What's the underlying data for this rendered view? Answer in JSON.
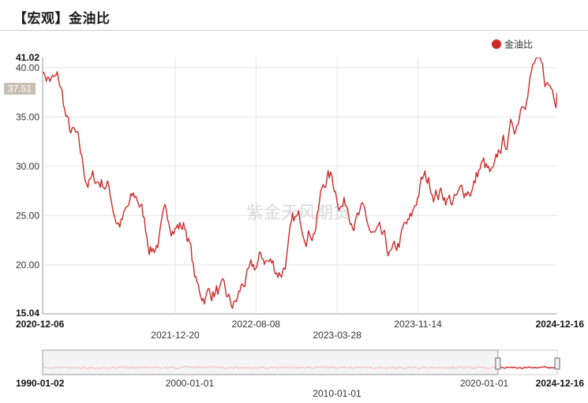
{
  "title": "【宏观】金油比",
  "watermark": "紫金天风期货",
  "colors": {
    "series": "#cc2a2a",
    "navigator_line": "#f3b6b6",
    "grid": "#e6e6e6",
    "current_bg": "#c8bfb4"
  },
  "chart_data": {
    "type": "line",
    "title": "",
    "xlabel": "",
    "ylabel": "",
    "ylim": [
      15.04,
      41.02
    ],
    "xlim": [
      "2020-12-06",
      "2024-12-16"
    ],
    "grid": true,
    "legend_position": "top-right",
    "y_ticks": [
      "15.04",
      "20.00",
      "25.00",
      "30.00",
      "35.00",
      "40.00",
      "41.02"
    ],
    "x_ticks_top_row": [
      "2020-12-06",
      "2022-08-08",
      "2023-11-14",
      "2024-12-16"
    ],
    "x_ticks_bottom_row": [
      "2021-12-20",
      "2023-03-28"
    ],
    "current_value": "37.51",
    "series": [
      {
        "name": "金油比",
        "x": [
          "2020-12-06",
          "2021-01-15",
          "2021-03-01",
          "2021-04-15",
          "2021-06-01",
          "2021-07-15",
          "2021-09-01",
          "2021-10-15",
          "2021-12-01",
          "2022-01-15",
          "2022-03-01",
          "2022-04-15",
          "2022-06-01",
          "2022-07-15",
          "2022-09-01",
          "2022-10-15",
          "2022-12-01",
          "2023-01-15",
          "2023-03-01",
          "2023-04-15",
          "2023-06-01",
          "2023-07-15",
          "2023-09-01",
          "2023-10-15",
          "2023-12-01",
          "2024-01-15",
          "2024-03-01",
          "2024-04-15",
          "2024-05-15",
          "2024-06-15",
          "2024-07-15",
          "2024-08-15",
          "2024-09-15",
          "2024-10-15",
          "2024-11-15",
          "2024-12-16"
        ],
        "values": [
          39.5,
          38.5,
          33.0,
          28.5,
          28.5,
          24.5,
          26.5,
          22.0,
          24.5,
          24.0,
          17.0,
          17.5,
          15.5,
          18.5,
          20.5,
          19.5,
          24.0,
          24.0,
          29.0,
          26.5,
          25.0,
          22.5,
          20.5,
          23.5,
          28.5,
          27.5,
          26.5,
          28.0,
          30.0,
          28.5,
          32.0,
          34.0,
          38.0,
          40.5,
          38.0,
          37.51
        ]
      }
    ]
  },
  "navigator": {
    "labels_top": [
      "1990-01-02",
      "2020-01-01",
      "2024-12-16"
    ],
    "labels_bottom": [
      "2000-01-01",
      "2010-01-01"
    ]
  }
}
